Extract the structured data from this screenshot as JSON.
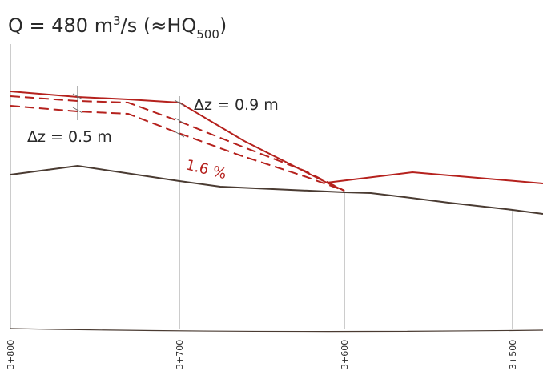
{
  "title": {
    "prefix": "Q = 480 m",
    "sup": "3",
    "middle": "/s (≈HQ",
    "sub": "500",
    "suffix": ")"
  },
  "annotations": {
    "dz_upper": "Δz = 0.9 m",
    "dz_lower": "Δz = 0.5 m",
    "slope": "1.6 %"
  },
  "stations": [
    "3+800",
    "3+700",
    "3+600",
    "3+500"
  ],
  "colors": {
    "ground": "#4a3b32",
    "water_level": "#b5211d",
    "grid": "#9a9a9a",
    "text": "#2a2a2a"
  }
}
